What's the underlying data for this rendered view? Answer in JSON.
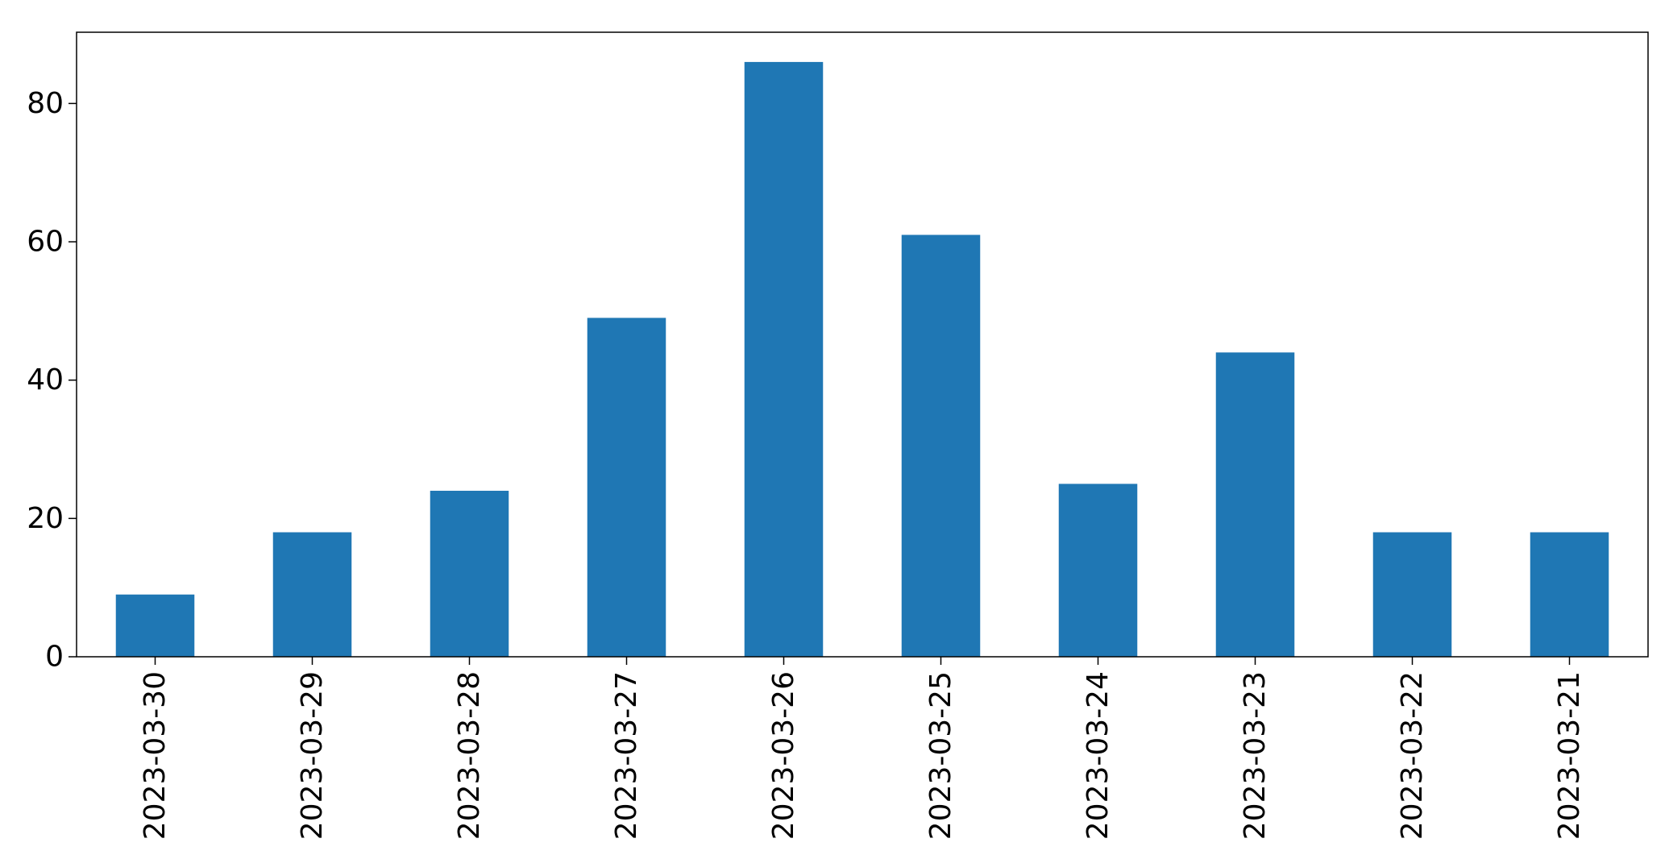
{
  "chart_data": {
    "type": "bar",
    "title": "",
    "xlabel": "",
    "ylabel": "",
    "categories": [
      "2023-03-30",
      "2023-03-29",
      "2023-03-28",
      "2023-03-27",
      "2023-03-26",
      "2023-03-25",
      "2023-03-24",
      "2023-03-23",
      "2023-03-22",
      "2023-03-21"
    ],
    "values": [
      9,
      18,
      24,
      49,
      86,
      61,
      25,
      44,
      18,
      18
    ],
    "ylim": [
      0,
      90.3
    ],
    "yticks": [
      0,
      20,
      40,
      60,
      80
    ],
    "grid": false,
    "legend": "none",
    "bar_color": "#1f77b4"
  }
}
